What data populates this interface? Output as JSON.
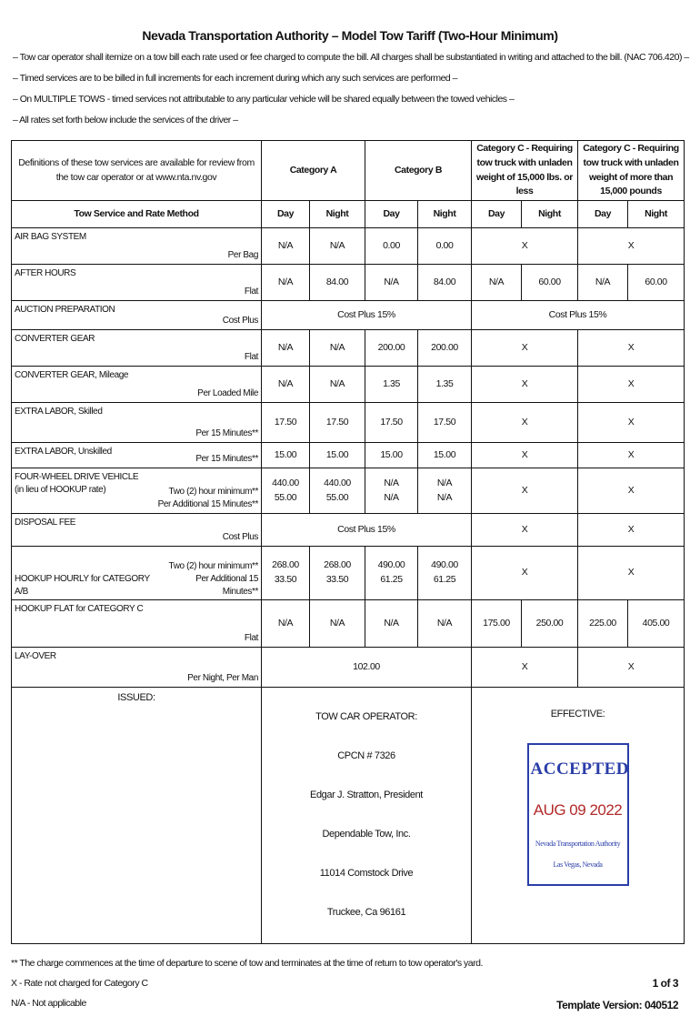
{
  "title": "Nevada Transportation Authority – Model Tow Tariff (Two-Hour Minimum)",
  "notes": [
    "– Tow car operator shall itemize on a tow bill each rate used or fee charged to compute the bill. All charges shall be substantiated in writing and attached to the bill. (NAC 706.420) –",
    "– Timed services are to be billed in full increments for each increment during which any such services are performed –",
    "– On MULTIPLE TOWS - timed services not attributable to any particular vehicle will be shared equally between the towed vehicles –",
    "– All rates set forth below include the services of the driver –"
  ],
  "table": {
    "definitions": "Definitions of these tow services are available for review from the tow car operator or at www.nta.nv.gov",
    "service_header": "Tow Service and Rate Method",
    "categories": [
      "Category A",
      "Category B",
      "Category C - Requiring tow truck with unladen weight of 15,000 lbs. or less",
      "Category C - Requiring tow truck with unladen weight of more than 15,000 pounds"
    ],
    "day": "Day",
    "night": "Night",
    "rows": [
      {
        "service": "AIR BAG SYSTEM",
        "method": "Per Bag",
        "cells": [
          {
            "t": "N/A"
          },
          {
            "t": "N/A"
          },
          {
            "t": "0.00"
          },
          {
            "t": "0.00"
          },
          {
            "t": "X",
            "span": 2
          },
          {
            "t": "X",
            "span": 2
          }
        ]
      },
      {
        "service": "AFTER HOURS",
        "method": "Flat",
        "cells": [
          {
            "t": "N/A"
          },
          {
            "t": "84.00"
          },
          {
            "t": "N/A"
          },
          {
            "t": "84.00"
          },
          {
            "t": "N/A"
          },
          {
            "t": "60.00"
          },
          {
            "t": "N/A"
          },
          {
            "t": "60.00"
          }
        ]
      },
      {
        "service": "AUCTION PREPARATION",
        "method": "Cost Plus",
        "cells": [
          {
            "t": "Cost Plus 15%",
            "span": 4
          },
          {
            "t": "Cost Plus 15%",
            "span": 4
          }
        ]
      },
      {
        "service": "CONVERTER GEAR",
        "method": "Flat",
        "cells": [
          {
            "t": "N/A"
          },
          {
            "t": "N/A"
          },
          {
            "t": "200.00"
          },
          {
            "t": "200.00"
          },
          {
            "t": "X",
            "span": 2
          },
          {
            "t": "X",
            "span": 2
          }
        ]
      },
      {
        "service": "CONVERTER GEAR, Mileage",
        "method": "Per Loaded Mile",
        "cells": [
          {
            "t": "N/A"
          },
          {
            "t": "N/A"
          },
          {
            "t": "1.35"
          },
          {
            "t": "1.35"
          },
          {
            "t": "X",
            "span": 2
          },
          {
            "t": "X",
            "span": 2
          }
        ]
      },
      {
        "service": "EXTRA LABOR, Skilled",
        "method": "Per 15 Minutes**",
        "cells": [
          {
            "t": "17.50"
          },
          {
            "t": "17.50"
          },
          {
            "t": "17.50"
          },
          {
            "t": "17.50"
          },
          {
            "t": "X",
            "span": 2
          },
          {
            "t": "X",
            "span": 2
          }
        ]
      },
      {
        "service": "EXTRA LABOR, Unskilled",
        "method": "Per 15 Minutes**",
        "cells": [
          {
            "t": "15.00"
          },
          {
            "t": "15.00"
          },
          {
            "t": "15.00"
          },
          {
            "t": "15.00"
          },
          {
            "t": "X",
            "span": 2
          },
          {
            "t": "X",
            "span": 2
          }
        ]
      },
      {
        "service": "FOUR-WHEEL DRIVE VEHICLE\n(in lieu of HOOKUP rate)",
        "method": "Two (2) hour minimum**\nPer Additional 15 Minutes**",
        "cells": [
          {
            "t": "440.00\n55.00"
          },
          {
            "t": "440.00\n55.00"
          },
          {
            "t": "N/A\nN/A"
          },
          {
            "t": "N/A\nN/A"
          },
          {
            "t": "X",
            "span": 2
          },
          {
            "t": "X",
            "span": 2
          }
        ]
      },
      {
        "service": "DISPOSAL FEE",
        "method": "Cost Plus",
        "cells": [
          {
            "t": "Cost Plus 15%",
            "span": 4
          },
          {
            "t": "X",
            "span": 2
          },
          {
            "t": "X",
            "span": 2
          }
        ]
      },
      {
        "service": "\n\nHOOKUP HOURLY for CATEGORY A/B",
        "method": "Two (2) hour minimum**\nPer Additional 15 Minutes**",
        "cells": [
          {
            "t": "268.00\n33.50"
          },
          {
            "t": "268.00\n33.50"
          },
          {
            "t": "490.00\n61.25"
          },
          {
            "t": "490.00\n61.25"
          },
          {
            "t": "X",
            "span": 2
          },
          {
            "t": "X",
            "span": 2
          }
        ]
      },
      {
        "service": "HOOKUP FLAT for CATEGORY C",
        "method": "Flat",
        "cells": [
          {
            "t": "N/A"
          },
          {
            "t": "N/A"
          },
          {
            "t": "N/A"
          },
          {
            "t": "N/A"
          },
          {
            "t": "175.00"
          },
          {
            "t": "250.00"
          },
          {
            "t": "225.00"
          },
          {
            "t": "405.00"
          }
        ]
      },
      {
        "service": "LAY-OVER",
        "method": "Per Night, Per Man",
        "cells": [
          {
            "t": "102.00",
            "span": 4
          },
          {
            "t": "X",
            "span": 2
          },
          {
            "t": "X",
            "span": 2
          }
        ]
      }
    ]
  },
  "footer_block": {
    "issued": "ISSUED:",
    "operator_lines": [
      "TOW CAR OPERATOR:",
      "CPCN # 7326",
      "Edgar J. Stratton, President",
      "Dependable Tow, Inc.",
      "11014 Comstock Drive",
      "Truckee, Ca 96161"
    ],
    "effective": "EFFECTIVE:",
    "stamp": {
      "status": "ACCEPTED",
      "date": "AUG 09 2022",
      "agency": "Nevada Transportation Authority",
      "city": "Las Vegas, Nevada",
      "border_color": "#2a3ea8",
      "date_color": "#b22a2a"
    }
  },
  "footnotes": [
    "** The charge commences at the time of departure to scene of tow and terminates at the time of return to tow operator's yard.",
    "X - Rate not charged for Category C",
    "N/A - Not applicable"
  ],
  "page": "1 of 3",
  "template_version": "Template Version: 040512"
}
